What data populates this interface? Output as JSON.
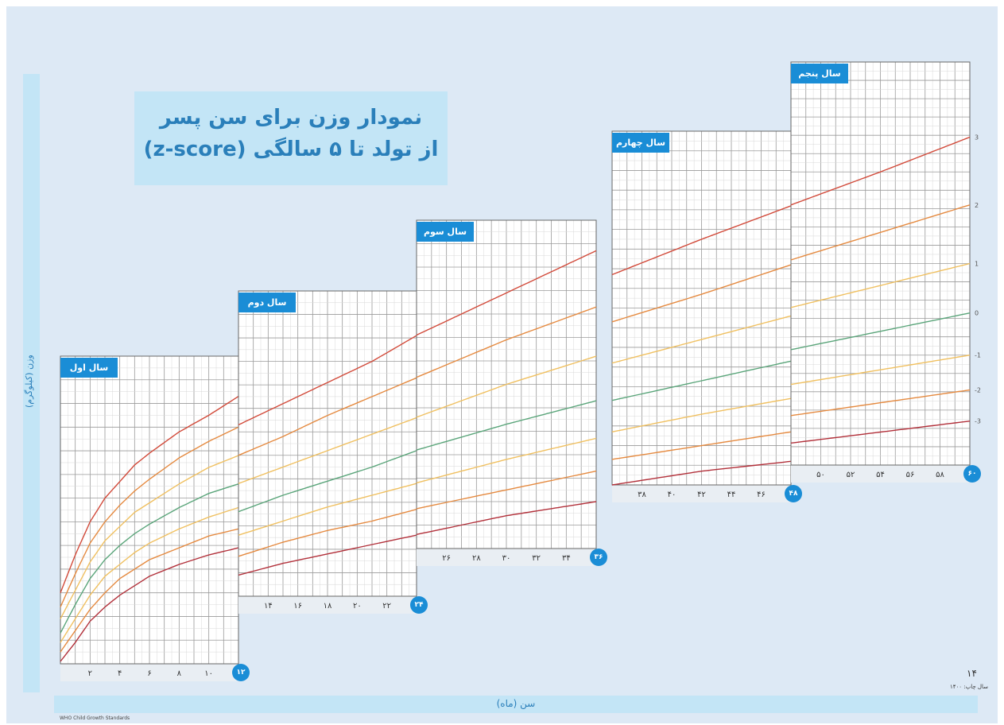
{
  "title": {
    "line1": "نمودار وزن برای سن پسر",
    "line2": "از تولد تا ۵ سالگی (z-score)"
  },
  "y_axis_label": "وزن (کیلوگرم)",
  "x_axis_label": "سن (ماه)",
  "page_number": "۱۴",
  "edition_label": "سال چاپ: ۱۴۰۰",
  "source_note": "WHO Child Growth Standards",
  "colors": {
    "background": "#dde9f5",
    "band": "#c3e5f6",
    "accent": "#1a8dd6",
    "grid": "#c8c8c8",
    "z_plus3": "#d24a3a",
    "z_plus2": "#e58a40",
    "z_plus1": "#f0c060",
    "z_0": "#5aa57a",
    "z_minus1": "#f0c060",
    "z_minus2": "#e58a40",
    "z_minus3": "#b2303a"
  },
  "chart_data": {
    "type": "line",
    "title": "نمودار وزن برای سن پسر از تولد تا ۵ سالگی (z-score)",
    "xlabel": "سن (ماه)",
    "ylabel": "وزن (کیلوگرم)",
    "xlim": [
      0,
      60
    ],
    "grid": true,
    "panels": [
      {
        "label": "سال اول",
        "months": [
          0,
          12
        ],
        "ylim": [
          2,
          15
        ],
        "end_label": "۱۲",
        "ticks": [
          "۲",
          "۴",
          "۶",
          "۸",
          "۱۰"
        ]
      },
      {
        "label": "سال دوم",
        "months": [
          12,
          24
        ],
        "ylim": [
          6,
          19
        ],
        "end_label": "۲۴",
        "ticks": [
          "۱۴",
          "۱۶",
          "۱۸",
          "۲۰",
          "۲۲"
        ]
      },
      {
        "label": "سال سوم",
        "months": [
          24,
          36
        ],
        "ylim": [
          8,
          22
        ],
        "end_label": "۳۶",
        "ticks": [
          "۲۶",
          "۲۸",
          "۳۰",
          "۳۲",
          "۳۴"
        ]
      },
      {
        "label": "سال چهارم",
        "months": [
          36,
          48
        ],
        "ylim": [
          10,
          28
        ],
        "end_label": "۴۸",
        "ticks": [
          "۳۸",
          "۴۰",
          "۴۲",
          "۴۴",
          "۴۶"
        ]
      },
      {
        "label": "سال پنجم",
        "months": [
          48,
          60
        ],
        "ylim": [
          10,
          32
        ],
        "end_label": "۶۰",
        "ticks": [
          "۵۰",
          "۵۲",
          "۵۴",
          "۵۶",
          "۵۸"
        ]
      }
    ],
    "series": [
      {
        "name": "3",
        "x": [
          0,
          1,
          2,
          3,
          4,
          5,
          6,
          8,
          10,
          12,
          15,
          18,
          21,
          24,
          30,
          36,
          42,
          48,
          54,
          60
        ],
        "values": [
          5.0,
          6.6,
          8.0,
          9.0,
          9.7,
          10.4,
          10.9,
          11.8,
          12.5,
          13.3,
          14.2,
          15.1,
          16.0,
          17.1,
          18.9,
          20.7,
          22.5,
          24.2,
          26.0,
          27.9
        ]
      },
      {
        "name": "2",
        "x": [
          0,
          1,
          2,
          3,
          4,
          5,
          6,
          8,
          10,
          12,
          15,
          18,
          21,
          24,
          30,
          36,
          42,
          48,
          54,
          60
        ],
        "values": [
          4.4,
          5.8,
          7.1,
          8.0,
          8.7,
          9.3,
          9.8,
          10.7,
          11.4,
          12.0,
          12.8,
          13.7,
          14.5,
          15.3,
          16.9,
          18.3,
          19.7,
          21.2,
          22.7,
          24.2
        ]
      },
      {
        "name": "1",
        "x": [
          0,
          1,
          2,
          3,
          4,
          5,
          6,
          8,
          10,
          12,
          15,
          18,
          21,
          24,
          30,
          36,
          42,
          48,
          54,
          60
        ],
        "values": [
          3.9,
          5.1,
          6.3,
          7.2,
          7.8,
          8.4,
          8.8,
          9.6,
          10.3,
          10.8,
          11.5,
          12.2,
          12.9,
          13.6,
          15.0,
          16.2,
          17.4,
          18.6,
          19.8,
          21.0
        ]
      },
      {
        "name": "0",
        "x": [
          0,
          1,
          2,
          3,
          4,
          5,
          6,
          8,
          10,
          12,
          15,
          18,
          21,
          24,
          30,
          36,
          42,
          48,
          54,
          60
        ],
        "values": [
          3.3,
          4.5,
          5.6,
          6.4,
          7.0,
          7.5,
          7.9,
          8.6,
          9.2,
          9.6,
          10.3,
          10.9,
          11.5,
          12.2,
          13.3,
          14.3,
          15.3,
          16.3,
          17.3,
          18.3
        ]
      },
      {
        "name": "-1",
        "x": [
          0,
          1,
          2,
          3,
          4,
          5,
          6,
          8,
          10,
          12,
          15,
          18,
          21,
          24,
          30,
          36,
          42,
          48,
          54,
          60
        ],
        "values": [
          2.9,
          3.9,
          4.9,
          5.7,
          6.2,
          6.7,
          7.1,
          7.7,
          8.2,
          8.6,
          9.2,
          9.8,
          10.3,
          10.8,
          11.8,
          12.7,
          13.6,
          14.4,
          15.2,
          16.0
        ]
      },
      {
        "name": "-2",
        "x": [
          0,
          1,
          2,
          3,
          4,
          5,
          6,
          8,
          10,
          12,
          15,
          18,
          21,
          24,
          30,
          36,
          42,
          48,
          54,
          60
        ],
        "values": [
          2.5,
          3.4,
          4.3,
          5.0,
          5.6,
          6.0,
          6.4,
          6.9,
          7.4,
          7.7,
          8.3,
          8.8,
          9.2,
          9.7,
          10.5,
          11.3,
          12.0,
          12.7,
          13.4,
          14.1
        ]
      },
      {
        "name": "-3",
        "x": [
          0,
          1,
          2,
          3,
          4,
          5,
          6,
          8,
          10,
          12,
          15,
          18,
          21,
          24,
          30,
          36,
          42,
          48,
          54,
          60
        ],
        "values": [
          2.1,
          2.9,
          3.8,
          4.4,
          4.9,
          5.3,
          5.7,
          6.2,
          6.6,
          6.9,
          7.4,
          7.8,
          8.2,
          8.6,
          9.4,
          10.0,
          10.7,
          11.2,
          11.8,
          12.4
        ]
      }
    ]
  }
}
